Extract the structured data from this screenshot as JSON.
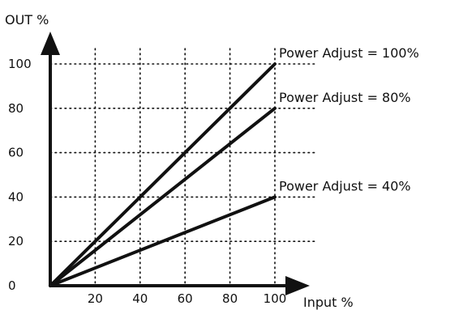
{
  "chart_data": {
    "type": "line",
    "title": "",
    "xlabel": "Input %",
    "ylabel": "OUT %",
    "xlim": [
      0,
      100
    ],
    "ylim": [
      0,
      100
    ],
    "x_ticks": [
      20,
      40,
      60,
      80,
      100
    ],
    "y_ticks": [
      0,
      20,
      40,
      60,
      80,
      100
    ],
    "grid": true,
    "line_color": "#111111",
    "series": [
      {
        "name": "Power Adjust = 100%",
        "x": [
          0,
          100
        ],
        "y": [
          0,
          100
        ]
      },
      {
        "name": "Power  Adjust = 80%",
        "x": [
          0,
          100
        ],
        "y": [
          0,
          80
        ]
      },
      {
        "name": "Power  Adjust = 40%",
        "x": [
          0,
          100
        ],
        "y": [
          0,
          40
        ]
      }
    ]
  }
}
